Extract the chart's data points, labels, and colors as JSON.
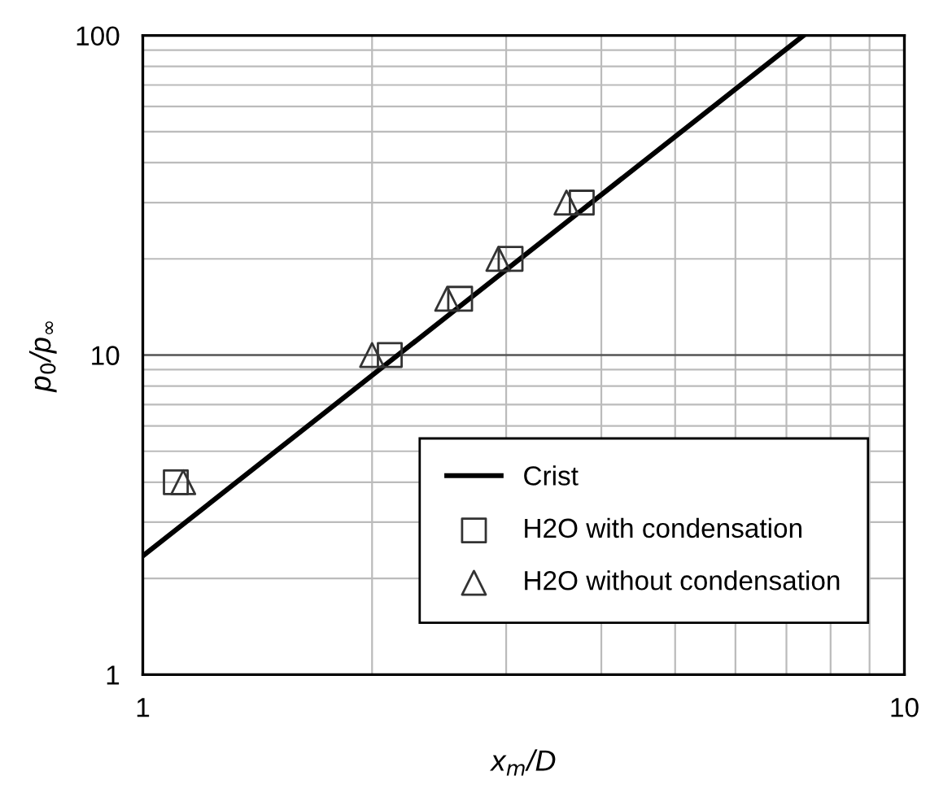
{
  "chart_data": {
    "type": "scatter",
    "xlabel": "x$_{m}$/D",
    "ylabel": "p$_{0}$/p$_{∞}$",
    "log": "xy",
    "xlim": [
      1,
      10
    ],
    "ylim": [
      1,
      100
    ],
    "xticks": [
      1,
      10
    ],
    "yticks": [
      1,
      10,
      100
    ],
    "grid": true,
    "legend": "bottom right",
    "series": [
      {
        "name": "Crist",
        "type": "line",
        "color": "#000000",
        "marker": "none",
        "line_style": "solid",
        "x": [
          1,
          7.37
        ],
        "values": [
          2.35,
          100
        ]
      },
      {
        "name": "H2O with condensation",
        "color": "#333333",
        "marker": "square",
        "x": [
          1.105,
          2.11,
          2.61,
          3.04,
          3.77
        ],
        "values": [
          4,
          10,
          15,
          20,
          30
        ]
      },
      {
        "name": "H2O without condensation",
        "color": "#333333",
        "marker": "triangle",
        "x": [
          1.13,
          2.0,
          2.51,
          2.93,
          3.6
        ],
        "values": [
          4,
          10,
          15,
          20,
          30
        ]
      }
    ]
  }
}
